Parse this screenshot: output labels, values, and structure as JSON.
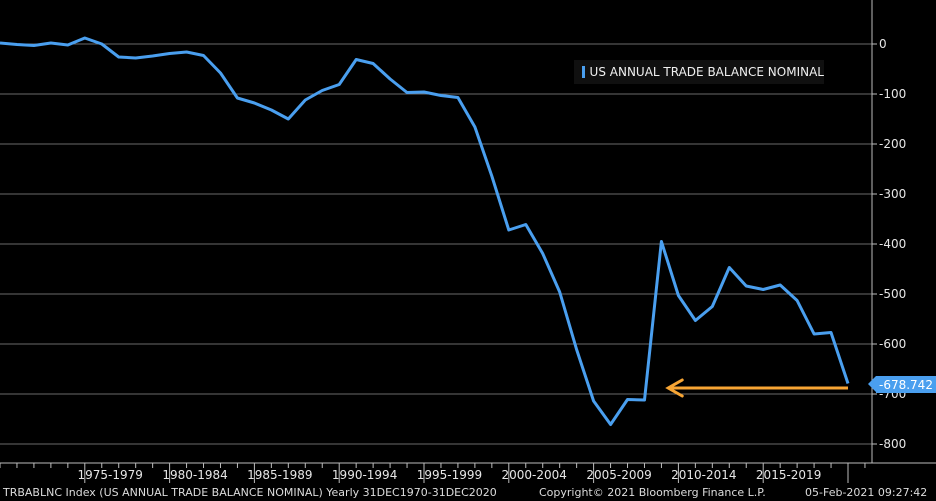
{
  "chart_data": {
    "type": "line",
    "title": "",
    "xlabel": "",
    "ylabel": "",
    "legend": {
      "position": "top-right",
      "entries": [
        "US ANNUAL TRADE BALANCE NOMINAL"
      ]
    },
    "ylim": [
      -850,
      85
    ],
    "yticks": [
      0,
      -100,
      -200,
      -300,
      -400,
      -500,
      -600,
      -700,
      -800
    ],
    "xlim": [
      1970,
      2021
    ],
    "x_categories": [
      "1975-1979",
      "1980-1984",
      "1985-1989",
      "1990-1994",
      "1995-1999",
      "2000-2004",
      "2005-2009",
      "2010-2014",
      "2015-2019"
    ],
    "grid": true,
    "series": [
      {
        "name": "US ANNUAL TRADE BALANCE NOMINAL",
        "color": "#4a9fef",
        "x": [
          1970,
          1971,
          1972,
          1973,
          1974,
          1975,
          1976,
          1977,
          1978,
          1979,
          1980,
          1981,
          1982,
          1983,
          1984,
          1985,
          1986,
          1987,
          1988,
          1989,
          1990,
          1991,
          1992,
          1993,
          1994,
          1995,
          1996,
          1997,
          1998,
          1999,
          2000,
          2001,
          2002,
          2003,
          2004,
          2005,
          2006,
          2007,
          2008,
          2009,
          2010,
          2011,
          2012,
          2013,
          2014,
          2015,
          2016,
          2017,
          2018,
          2019,
          2020
        ],
        "y": [
          2,
          -1,
          -3,
          2,
          -2,
          12,
          0,
          -26,
          -28,
          -24,
          -19,
          -16,
          -23,
          -58,
          -108,
          -118,
          -132,
          -150,
          -112,
          -93,
          -81,
          -31,
          -39,
          -70,
          -97,
          -96,
          -103,
          -107,
          -166,
          -264,
          -372,
          -361,
          -419,
          -496,
          -611,
          -714,
          -761,
          -711,
          -712,
          -395,
          -503,
          -553,
          -525,
          -447,
          -484,
          -491,
          -482,
          -513,
          -580,
          -577,
          -679
        ]
      }
    ],
    "last_value_label": "-678.742",
    "annotation_arrow": {
      "from_x": 2020,
      "to_x": 2009.4,
      "y": -688,
      "color": "#f7a534"
    }
  },
  "footer": {
    "ticker": "TRBABLNC Index (US ANNUAL TRADE BALANCE NOMINAL)  Yearly 31DEC1970-31DEC2020",
    "copyright": "Copyright© 2021 Bloomberg Finance L.P.",
    "timestamp": "05-Feb-2021 09:27:42"
  },
  "colors": {
    "background": "#000000",
    "accent": "#4a9fef",
    "arrow": "#f7a534"
  }
}
